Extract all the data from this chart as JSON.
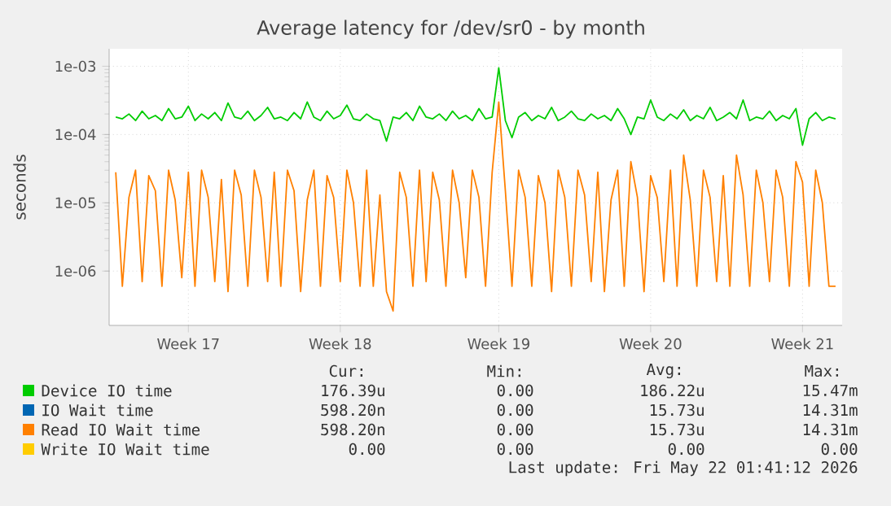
{
  "chart_data": {
    "type": "line",
    "title": "Average latency for /dev/sr0 - by month",
    "ylabel": "seconds",
    "log": "y",
    "grid": true,
    "legend": "bottom",
    "marker": "none",
    "line_style": "solid",
    "categories": [
      null,
      null,
      null,
      null,
      null,
      null,
      null,
      null,
      null,
      null,
      null,
      "Week 17",
      null,
      null,
      null,
      null,
      null,
      null,
      null,
      null,
      null,
      null,
      null,
      null,
      null,
      null,
      null,
      null,
      null,
      null,
      null,
      null,
      null,
      null,
      "Week 18",
      null,
      null,
      null,
      null,
      null,
      null,
      null,
      null,
      null,
      null,
      null,
      null,
      null,
      null,
      null,
      null,
      null,
      null,
      null,
      null,
      null,
      null,
      null,
      "Week 19",
      null,
      null,
      null,
      null,
      null,
      null,
      null,
      null,
      null,
      null,
      null,
      null,
      null,
      null,
      null,
      null,
      null,
      null,
      null,
      null,
      null,
      null,
      "Week 20",
      null,
      null,
      null,
      null,
      null,
      null,
      null,
      null,
      null,
      null,
      null,
      null,
      null,
      null,
      null,
      null,
      null,
      null,
      null,
      null,
      null,
      null,
      "Week 21",
      null,
      null,
      null,
      null,
      null
    ],
    "ylim": [
      1.6e-07,
      0.0018
    ],
    "yticks": [
      {
        "value": 1e-06,
        "label": "1e-06"
      },
      {
        "value": 1e-05,
        "label": "1e-05"
      },
      {
        "value": 0.0001,
        "label": "1e-04"
      },
      {
        "value": 0.001,
        "label": "1e-03"
      }
    ],
    "series": [
      {
        "name": "Device IO time",
        "color": "#00cc00",
        "values": [
          0.00018,
          0.00017,
          0.0002,
          0.00016,
          0.00022,
          0.00017,
          0.00019,
          0.00016,
          0.00024,
          0.00017,
          0.00018,
          0.00026,
          0.00016,
          0.0002,
          0.00017,
          0.00021,
          0.00016,
          0.00029,
          0.00018,
          0.00017,
          0.00022,
          0.00016,
          0.00019,
          0.00025,
          0.00017,
          0.00018,
          0.00016,
          0.00021,
          0.00017,
          0.0003,
          0.00018,
          0.00016,
          0.00022,
          0.00017,
          0.00019,
          0.00027,
          0.00017,
          0.00016,
          0.0002,
          0.00017,
          0.00016,
          8e-05,
          0.00018,
          0.00017,
          0.00021,
          0.00016,
          0.00026,
          0.00018,
          0.00017,
          0.0002,
          0.00016,
          0.00022,
          0.00017,
          0.00019,
          0.00016,
          0.00024,
          0.00017,
          0.00018,
          0.00095,
          0.00016,
          9e-05,
          0.00018,
          0.00021,
          0.00016,
          0.00019,
          0.00017,
          0.00025,
          0.00016,
          0.00018,
          0.00022,
          0.00017,
          0.00016,
          0.0002,
          0.00017,
          0.00019,
          0.00016,
          0.00024,
          0.00017,
          0.0001,
          0.00018,
          0.00017,
          0.00032,
          0.00018,
          0.00016,
          0.0002,
          0.00017,
          0.00023,
          0.00016,
          0.00019,
          0.00017,
          0.00025,
          0.00016,
          0.00018,
          0.00021,
          0.00017,
          0.00032,
          0.00016,
          0.00018,
          0.00017,
          0.00022,
          0.00016,
          0.00019,
          0.00017,
          0.00024,
          7e-05,
          0.00017,
          0.00021,
          0.00016,
          0.00018,
          0.00017
        ]
      },
      {
        "name": "IO Wait time",
        "color": "#0066b3",
        "values": [
          null,
          null,
          null,
          null,
          null,
          null,
          null,
          null,
          null,
          null,
          null,
          null,
          null,
          null,
          null,
          null,
          null,
          null,
          null,
          null,
          null,
          null,
          null,
          null,
          null,
          null,
          null,
          null,
          null,
          null,
          null,
          null,
          null,
          null,
          null,
          null,
          null,
          null,
          null,
          null,
          null,
          null,
          null,
          null,
          null,
          null,
          null,
          null,
          null,
          null,
          null,
          null,
          null,
          null,
          null,
          null,
          null,
          null,
          null,
          null,
          null,
          null,
          null,
          null,
          null,
          null,
          null,
          null,
          null,
          null,
          null,
          null,
          null,
          null,
          null,
          null,
          null,
          null,
          null,
          null,
          null,
          null,
          null,
          null,
          null,
          null,
          null,
          null,
          null,
          null,
          null,
          null,
          null,
          null,
          null,
          null,
          null,
          null,
          null,
          null,
          null,
          null,
          null,
          null,
          null,
          null,
          null,
          null,
          null,
          null
        ]
      },
      {
        "name": "Read IO Wait time",
        "color": "#ff8000",
        "values": [
          2.8e-05,
          6e-07,
          1.2e-05,
          3e-05,
          7e-07,
          2.5e-05,
          1.5e-05,
          6e-07,
          3e-05,
          1.1e-05,
          8e-07,
          2.8e-05,
          6e-07,
          3e-05,
          1.2e-05,
          7e-07,
          2.2e-05,
          5e-07,
          3e-05,
          1.3e-05,
          6e-07,
          3e-05,
          1.2e-05,
          7e-07,
          2.8e-05,
          6e-07,
          3e-05,
          1.5e-05,
          5e-07,
          1.1e-05,
          3e-05,
          6e-07,
          2.5e-05,
          1.2e-05,
          7e-07,
          3e-05,
          1e-05,
          6e-07,
          3e-05,
          6e-07,
          1.3e-05,
          5e-07,
          2.6e-07,
          2.8e-05,
          1.2e-05,
          6e-07,
          3e-05,
          7e-07,
          2.8e-05,
          1.1e-05,
          6e-07,
          3e-05,
          1e-05,
          8e-07,
          3e-05,
          1.2e-05,
          6e-07,
          2.8e-05,
          0.0003,
          1.5e-05,
          6e-07,
          3e-05,
          1.2e-05,
          6e-07,
          2.5e-05,
          1e-05,
          5e-07,
          3e-05,
          1.2e-05,
          6e-07,
          3e-05,
          1.3e-05,
          7e-07,
          2.8e-05,
          5e-07,
          1.1e-05,
          3e-05,
          6e-07,
          4e-05,
          1.2e-05,
          5e-07,
          2.5e-05,
          1.2e-05,
          7e-07,
          3e-05,
          6e-07,
          5e-05,
          1.1e-05,
          6e-07,
          3e-05,
          1.2e-05,
          7e-07,
          2.5e-05,
          6e-07,
          5e-05,
          1.3e-05,
          6e-07,
          3e-05,
          1e-05,
          7e-07,
          3e-05,
          1.2e-05,
          6e-07,
          4e-05,
          2e-05,
          6e-07,
          3e-05,
          1e-05,
          6e-07,
          6e-07
        ]
      },
      {
        "name": "Write IO Wait time",
        "color": "#ffcc00",
        "values": [
          null,
          null,
          null,
          null,
          null,
          null,
          null,
          null,
          null,
          null,
          null,
          null,
          null,
          null,
          null,
          null,
          null,
          null,
          null,
          null,
          null,
          null,
          null,
          null,
          null,
          null,
          null,
          null,
          null,
          null,
          null,
          null,
          null,
          null,
          null,
          null,
          null,
          null,
          null,
          null,
          null,
          null,
          null,
          null,
          null,
          null,
          null,
          null,
          null,
          null,
          null,
          null,
          null,
          null,
          null,
          null,
          null,
          null,
          null,
          null,
          null,
          null,
          null,
          null,
          null,
          null,
          null,
          null,
          null,
          null,
          null,
          null,
          null,
          null,
          null,
          null,
          null,
          null,
          null,
          null,
          null,
          null,
          null,
          null,
          null,
          null,
          null,
          null,
          null,
          null,
          null,
          null,
          null,
          null,
          null,
          null,
          null,
          null,
          null,
          null,
          null,
          null,
          null,
          null,
          null,
          null,
          null,
          null,
          null,
          null
        ]
      }
    ],
    "annotations": [
      "Cur:",
      "Min:",
      "Avg:",
      "Max:",
      "176.39u",
      "0.00",
      "186.22u",
      "15.47m",
      "598.20n",
      "0.00",
      "15.73u",
      "14.31m",
      "598.20n",
      "0.00",
      "15.73u",
      "14.31m",
      "0.00",
      "0.00",
      "0.00",
      "0.00",
      "Last update: Fri May 22 01:41:12 2026"
    ]
  }
}
